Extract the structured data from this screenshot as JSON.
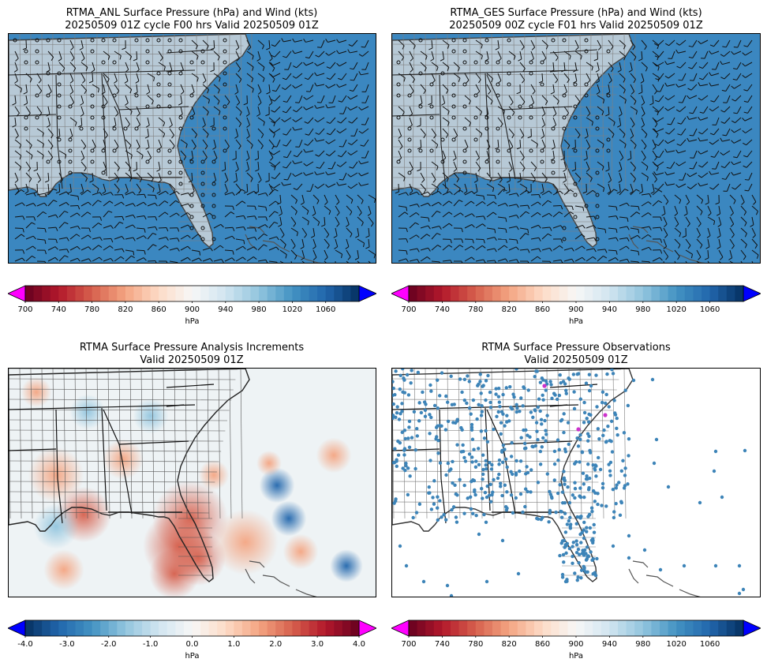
{
  "panels": [
    {
      "title1": "RTMA_ANL Surface Pressure (hPa) and Wind (kts)",
      "title2": "20250509 01Z cycle F00 hrs Valid 20250509 01Z"
    },
    {
      "title1": "RTMA_GES Surface Pressure (hPa) and Wind (kts)",
      "title2": "20250509 00Z cycle F01 hrs Valid 20250509 01Z"
    },
    {
      "title1": "RTMA Surface Pressure Analysis Increments",
      "title2": "Valid 20250509 01Z"
    },
    {
      "title1": "RTMA Surface Pressure Observations",
      "title2": "Valid 20250509 01Z"
    }
  ],
  "colorbars": {
    "pressure": {
      "ticks": [
        "700",
        "740",
        "780",
        "820",
        "860",
        "900",
        "940",
        "980",
        "1020",
        "1060"
      ],
      "unit": "hPa",
      "range": [
        700,
        1100
      ],
      "under_color": "#ff00ff",
      "over_color": "#0000ff"
    },
    "increment": {
      "ticks": [
        "-4.0",
        "-3.0",
        "-2.0",
        "-1.0",
        "0.0",
        "1.0",
        "2.0",
        "3.0",
        "4.0"
      ],
      "unit": "hPa",
      "range": [
        -4,
        4
      ],
      "under_color": "#0000ff",
      "over_color": "#ff00ff"
    }
  },
  "colors": {
    "ocean_pressure": "#3b87c0",
    "land_pressure": "#b7c9d6",
    "obs_dot": "#3d84b8",
    "obs_dot_low": "#cc33cc"
  }
}
